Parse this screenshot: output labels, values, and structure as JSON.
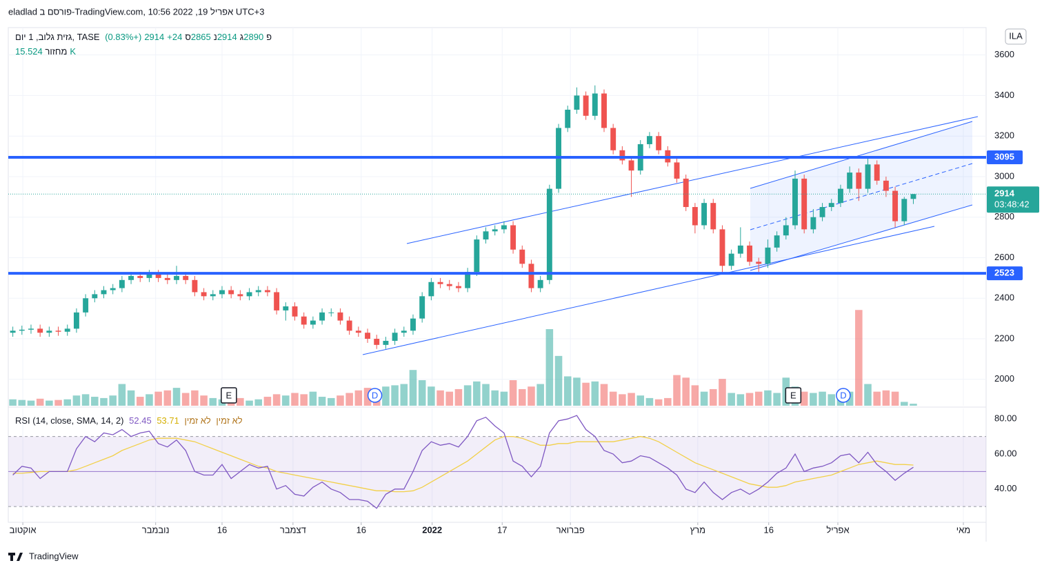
{
  "header": {
    "text": "eladlad פורסם ב-TradingView.com, אפריל 19, 2022 10:56 UTC+3"
  },
  "footer": {
    "brand": "TradingView"
  },
  "chart_data": [
    {
      "type": "candlestick",
      "title": "גזית גלוב, 1 יום, TASE",
      "ohlc_labels": [
        "פ",
        "ג",
        "נ",
        "ס"
      ],
      "change": {
        "value": 24,
        "label": "+24"
      },
      "change_pct": {
        "value": 0.83,
        "label": "(+0.83%)"
      },
      "open": [
        2230,
        2240,
        2245,
        2250,
        2230,
        2240,
        2235,
        2250,
        2330,
        2400,
        2420,
        2440,
        2450,
        2490,
        2510,
        2500,
        2520,
        2500,
        2490,
        2510,
        2490,
        2430,
        2410,
        2420,
        2440,
        2420,
        2410,
        2430,
        2440,
        2430,
        2340,
        2360,
        2310,
        2270,
        2290,
        2330,
        2330,
        2290,
        2240,
        2230,
        2200,
        2170,
        2190,
        2230,
        2240,
        2300,
        2410,
        2480,
        2470,
        2460,
        2450,
        2530,
        2690,
        2730,
        2740,
        2760,
        2640,
        2570,
        2450,
        2490,
        2940,
        3240,
        3330,
        3400,
        3300,
        3410,
        3240,
        3130,
        3080,
        3030,
        3160,
        3200,
        3130,
        3070,
        2990,
        2850,
        2760,
        2870,
        2740,
        2560,
        2620,
        2660,
        2580,
        2570,
        2650,
        2710,
        2760,
        2990,
        2740,
        2800,
        2850,
        2870,
        2940,
        3020,
        2940,
        3060,
        2980,
        2930,
        2780,
        2890
      ],
      "high": [
        2260,
        2265,
        2270,
        2270,
        2260,
        2260,
        2270,
        2350,
        2420,
        2440,
        2460,
        2470,
        2510,
        2530,
        2530,
        2540,
        2540,
        2520,
        2560,
        2530,
        2510,
        2450,
        2440,
        2460,
        2460,
        2440,
        2450,
        2460,
        2460,
        2450,
        2380,
        2380,
        2330,
        2310,
        2350,
        2350,
        2350,
        2310,
        2260,
        2250,
        2220,
        2210,
        2250,
        2260,
        2320,
        2430,
        2500,
        2500,
        2490,
        2480,
        2550,
        2710,
        2750,
        2760,
        2780,
        2780,
        2660,
        2590,
        2510,
        2960,
        3260,
        3350,
        3440,
        3420,
        3450,
        3430,
        3260,
        3150,
        3100,
        3180,
        3220,
        3220,
        3150,
        3090,
        3010,
        2870,
        2890,
        2890,
        2760,
        2640,
        2750,
        2680,
        2600,
        2690,
        2730,
        2800,
        3030,
        3010,
        2840,
        2870,
        2890,
        2960,
        3050,
        3040,
        3090,
        3080,
        3000,
        2950,
        2900,
        2914
      ],
      "low": [
        2210,
        2220,
        2225,
        2210,
        2210,
        2215,
        2215,
        2230,
        2310,
        2380,
        2400,
        2420,
        2430,
        2470,
        2480,
        2480,
        2480,
        2470,
        2470,
        2470,
        2410,
        2390,
        2390,
        2400,
        2400,
        2390,
        2390,
        2410,
        2410,
        2320,
        2290,
        2290,
        2250,
        2250,
        2270,
        2310,
        2270,
        2220,
        2210,
        2180,
        2150,
        2150,
        2170,
        2210,
        2220,
        2280,
        2390,
        2450,
        2440,
        2430,
        2430,
        2510,
        2670,
        2710,
        2720,
        2620,
        2550,
        2430,
        2430,
        2470,
        2920,
        3220,
        3310,
        3280,
        3280,
        3220,
        3110,
        3060,
        2900,
        3010,
        3140,
        3110,
        3050,
        2970,
        2830,
        2720,
        2740,
        2720,
        2530,
        2540,
        2600,
        2560,
        2530,
        2550,
        2630,
        2690,
        2740,
        2720,
        2720,
        2780,
        2830,
        2850,
        2920,
        2880,
        2920,
        2960,
        2900,
        2750,
        2760,
        2865
      ],
      "close": [
        2240,
        2245,
        2250,
        2230,
        2240,
        2235,
        2250,
        2330,
        2400,
        2420,
        2440,
        2450,
        2490,
        2510,
        2500,
        2520,
        2500,
        2490,
        2510,
        2490,
        2430,
        2410,
        2420,
        2440,
        2420,
        2410,
        2430,
        2440,
        2430,
        2340,
        2360,
        2310,
        2270,
        2290,
        2330,
        2330,
        2290,
        2240,
        2230,
        2200,
        2170,
        2190,
        2230,
        2240,
        2300,
        2410,
        2480,
        2470,
        2460,
        2450,
        2530,
        2690,
        2730,
        2740,
        2760,
        2640,
        2570,
        2450,
        2490,
        2940,
        3240,
        3330,
        3400,
        3300,
        3410,
        3240,
        3130,
        3080,
        3030,
        3160,
        3200,
        3130,
        3070,
        2990,
        2850,
        2760,
        2870,
        2740,
        2560,
        2620,
        2660,
        2580,
        2570,
        2650,
        2710,
        2760,
        2990,
        2740,
        2800,
        2850,
        2870,
        2940,
        3020,
        2940,
        3060,
        2980,
        2930,
        2780,
        2890,
        2914
      ],
      "up_color": "#26a69a",
      "down_color": "#ef5350",
      "xlim": [
        -0.5,
        107
      ],
      "xticks": [
        {
          "value": 1.1,
          "label": "אוקטוב"
        },
        {
          "value": 15.7,
          "label": "נובמבר"
        },
        {
          "value": 23,
          "label": "16"
        },
        {
          "value": 30.8,
          "label": "דצמבר"
        },
        {
          "value": 38.3,
          "label": "16"
        },
        {
          "value": 46.1,
          "label": "2022",
          "bold": true
        },
        {
          "value": 53.8,
          "label": "17"
        },
        {
          "value": 61.3,
          "label": "פברואר"
        },
        {
          "value": 75.3,
          "label": "מרץ"
        },
        {
          "value": 83.1,
          "label": "16"
        },
        {
          "value": 90.7,
          "label": "אפריל"
        },
        {
          "value": 104.5,
          "label": "מאי"
        }
      ],
      "ylim": [
        1870,
        3735
      ],
      "yticks": [
        2000,
        2200,
        2400,
        2600,
        2800,
        3000,
        3200,
        3400,
        3600
      ],
      "grid": true,
      "hlines": [
        {
          "value": 3095,
          "color": "#2962ff"
        },
        {
          "value": 2523,
          "color": "#2962ff"
        }
      ],
      "countdown": "03:48:42",
      "currency": "ILA",
      "events": [
        {
          "label": "E",
          "x": 23.75,
          "shape": "square",
          "color": "#131722"
        },
        {
          "label": "D",
          "x": 39.8,
          "shape": "circle",
          "color": "#2962ff"
        },
        {
          "label": "E",
          "x": 85.8,
          "shape": "square",
          "color": "#131722"
        },
        {
          "label": "D",
          "x": 91.3,
          "shape": "circle",
          "color": "#2962ff"
        }
      ]
    },
    {
      "type": "bar",
      "title": "מחזור",
      "current_label": "15.524K",
      "values": [
        50000,
        45000,
        40000,
        55000,
        40000,
        45000,
        50000,
        80000,
        90000,
        70000,
        60000,
        80000,
        170000,
        120000,
        70000,
        90000,
        110000,
        120000,
        140000,
        100000,
        120000,
        80000,
        60000,
        50000,
        70000,
        60000,
        40000,
        50000,
        70000,
        90000,
        80000,
        100000,
        90000,
        110000,
        70000,
        60000,
        80000,
        100000,
        120000,
        140000,
        130000,
        150000,
        160000,
        170000,
        280000,
        200000,
        150000,
        120000,
        110000,
        130000,
        160000,
        190000,
        170000,
        120000,
        110000,
        200000,
        130000,
        150000,
        170000,
        600000,
        390000,
        230000,
        220000,
        180000,
        190000,
        170000,
        110000,
        90000,
        100000,
        80000,
        60000,
        50000,
        60000,
        240000,
        220000,
        160000,
        110000,
        130000,
        210000,
        100000,
        90000,
        100000,
        110000,
        120000,
        100000,
        220000,
        150000,
        110000,
        100000,
        110000,
        90000,
        100000,
        110000,
        750000,
        170000,
        110000,
        120000,
        110000,
        30000,
        15524
      ],
      "ylim": [
        0,
        800000
      ],
      "up_color": "#26a69a80",
      "down_color": "#ef535080"
    },
    {
      "type": "line",
      "title": "RSI (14, close, SMA, 14, 2)",
      "not_available": "לא זמין",
      "series": [
        {
          "color": "#7e57c2",
          "values": [
            48,
            53,
            52,
            46,
            50,
            50,
            50,
            63,
            70,
            67,
            72,
            71,
            74,
            70,
            72,
            73,
            66,
            64,
            68,
            62,
            50,
            48,
            48,
            54,
            46,
            50,
            54,
            52,
            53,
            40,
            42,
            37,
            36,
            41,
            44,
            40,
            38,
            34,
            34,
            33,
            29,
            37,
            40,
            40,
            50,
            62,
            67,
            65,
            66,
            64,
            70,
            79,
            81,
            76,
            72,
            56,
            53,
            47,
            53,
            72,
            79,
            80,
            82,
            74,
            70,
            62,
            60,
            55,
            56,
            59,
            58,
            55,
            52,
            48,
            40,
            38,
            44,
            38,
            34,
            38,
            40,
            37,
            40,
            44,
            49,
            52,
            60,
            50,
            52,
            53,
            55,
            59,
            60,
            55,
            61,
            54,
            50,
            45,
            49,
            52.45
          ]
        },
        {
          "color": "#f2d048",
          "values": [
            49,
            49,
            49.5,
            50,
            50,
            50,
            50,
            51,
            53,
            55,
            57,
            59,
            62,
            64,
            66,
            68,
            69,
            69,
            69,
            68,
            67,
            65,
            63,
            61,
            59,
            57,
            55,
            53,
            52,
            50,
            49,
            48,
            47,
            46,
            45,
            44,
            43,
            42,
            41,
            40,
            39,
            39,
            38.5,
            38.5,
            39,
            41,
            44,
            47,
            50,
            53,
            56,
            60,
            64,
            68,
            70,
            70,
            69,
            67,
            65,
            65,
            66,
            66,
            67,
            67,
            67,
            67,
            67,
            68,
            69,
            70,
            69,
            67,
            64,
            61,
            58,
            55,
            53,
            51,
            49,
            47,
            45,
            43,
            42,
            41,
            41,
            42,
            44,
            45,
            46,
            47,
            48,
            50,
            52,
            54,
            55,
            56,
            55,
            54,
            54,
            53.71
          ]
        }
      ],
      "bands": [
        30,
        50,
        70
      ],
      "band_fill": "#7e57c21a",
      "ylim": [
        21,
        86
      ],
      "yticks": [
        {
          "value": 40,
          "label": "40.00"
        },
        {
          "value": 60,
          "label": "60.00"
        },
        {
          "value": 80,
          "label": "80.00"
        }
      ]
    }
  ]
}
